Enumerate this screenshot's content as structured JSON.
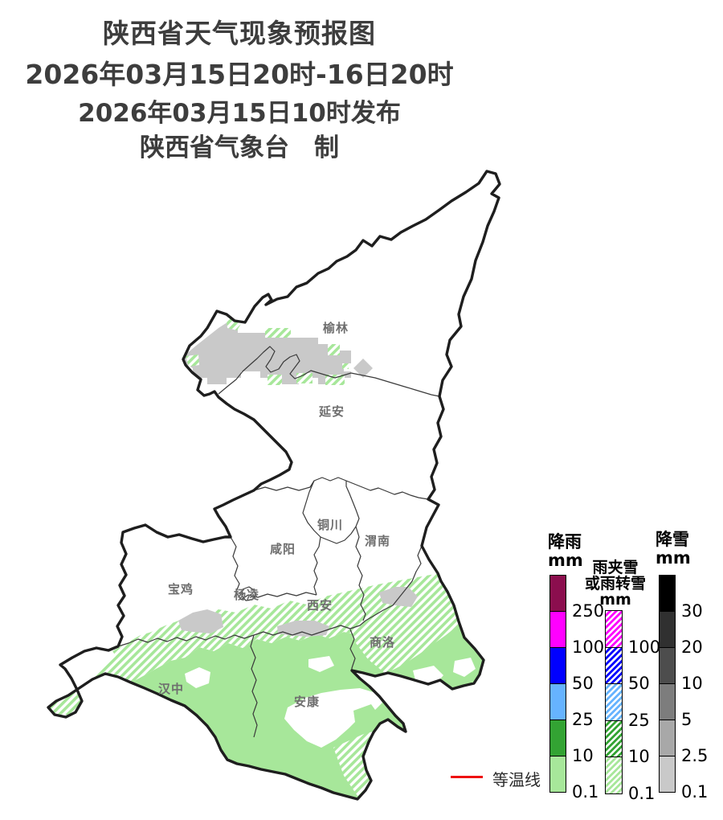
{
  "header": {
    "title": "陕西省天气现象预报图",
    "period": "2026年03月15日20时-16日20时",
    "issued": "2026年03月15日10时发布",
    "producer": "陕西省气象台　制"
  },
  "map": {
    "fills": {
      "light_rain": "#A7E79A",
      "light_snow": "#C9C9C9",
      "boundary": "#1e1e1e",
      "inner_boundary": "#3a3a3a"
    },
    "cities": [
      {
        "name": "榆林"
      },
      {
        "name": "延安"
      },
      {
        "name": "铜川"
      },
      {
        "name": "渭南"
      },
      {
        "name": "咸阳"
      },
      {
        "name": "宝鸡"
      },
      {
        "name": "杨凌"
      },
      {
        "name": "西安"
      },
      {
        "name": "商洛"
      },
      {
        "name": "汉中"
      },
      {
        "name": "安康"
      }
    ]
  },
  "legend": {
    "rain": {
      "title_l1": "降雨",
      "title_l2": "mm",
      "labels": [
        "250",
        "100",
        "50",
        "25",
        "10",
        "0.1"
      ],
      "colors": [
        "#8B0E4E",
        "#FF00FF",
        "#0000FF",
        "#66B3FF",
        "#33A333",
        "#A7E79A"
      ]
    },
    "sleet": {
      "title_l1": "雨夹雪",
      "title_l2": "或雨转雪",
      "title_l3": "mm",
      "labels": [
        "100",
        "50",
        "25",
        "10",
        "0.1"
      ],
      "colors": [
        "#FF00FF",
        "#0000FF",
        "#66B3FF",
        "#33A333",
        "#A7E79A"
      ]
    },
    "snow": {
      "title_l1": "降雪",
      "title_l2": "mm",
      "labels": [
        "30",
        "20",
        "10",
        "5",
        "2.5",
        "0.1"
      ],
      "colors": [
        "#000000",
        "#303030",
        "#4D4D4D",
        "#7D7D7D",
        "#A8A8A8",
        "#C9C9C9"
      ]
    },
    "isotherm": {
      "label": "等温线",
      "line_color": "#EE1111"
    }
  }
}
